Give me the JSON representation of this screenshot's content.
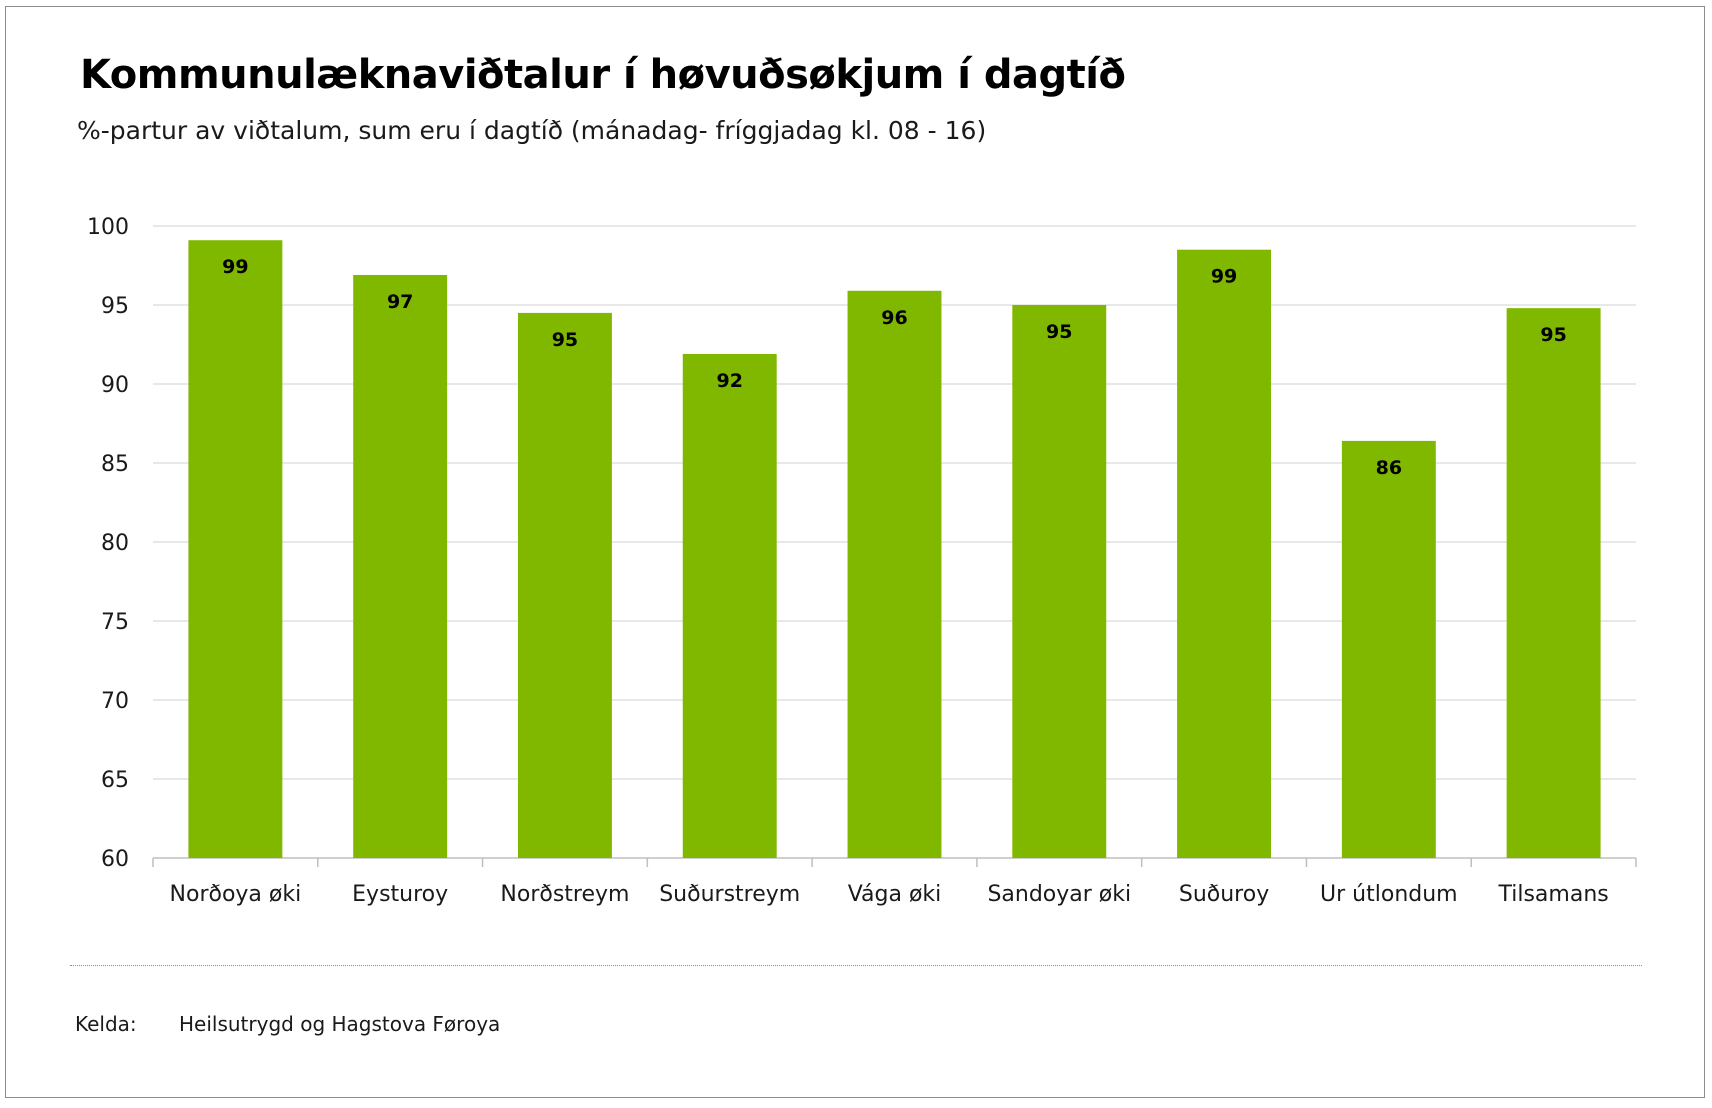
{
  "title": "Kommunulæknaviðtalur í høvuðsøkjum í dagtíð",
  "subtitle": "%-partur av viðtalum, sum eru í dagtíð (mánadag- fríggjadag kl. 08 - 16)",
  "source": {
    "label": "Kelda:",
    "value": "Heilsutrygd og Hagstova Føroya"
  },
  "colors": {
    "bar": "#80b800",
    "grid": "#d9d9d9",
    "axis": "#bfbfbf"
  },
  "chart_data": {
    "type": "bar",
    "title": "Kommunulæknaviðtalur í høvuðsøkjum í dagtíð",
    "subtitle": "%-partur av viðtalum, sum eru í dagtíð (mánadag- fríggjadag kl. 08 - 16)",
    "xlabel": "",
    "ylabel": "",
    "categories": [
      "Norðoya øki",
      "Eysturoy",
      "Norðstreym",
      "Suðurstreym",
      "Vága øki",
      "Sandoyar øki",
      "Suðuroy",
      "Ur útlondum",
      "Tilsamans"
    ],
    "values": [
      99.1,
      96.9,
      94.5,
      91.9,
      95.9,
      95.0,
      98.5,
      86.4,
      94.8
    ],
    "data_labels": [
      "99",
      "97",
      "95",
      "92",
      "96",
      "95",
      "99",
      "86",
      "95"
    ],
    "ylim": [
      60,
      100
    ],
    "yticks": [
      60,
      65,
      70,
      75,
      80,
      85,
      90,
      95,
      100
    ],
    "grid": true,
    "legend": "none"
  }
}
